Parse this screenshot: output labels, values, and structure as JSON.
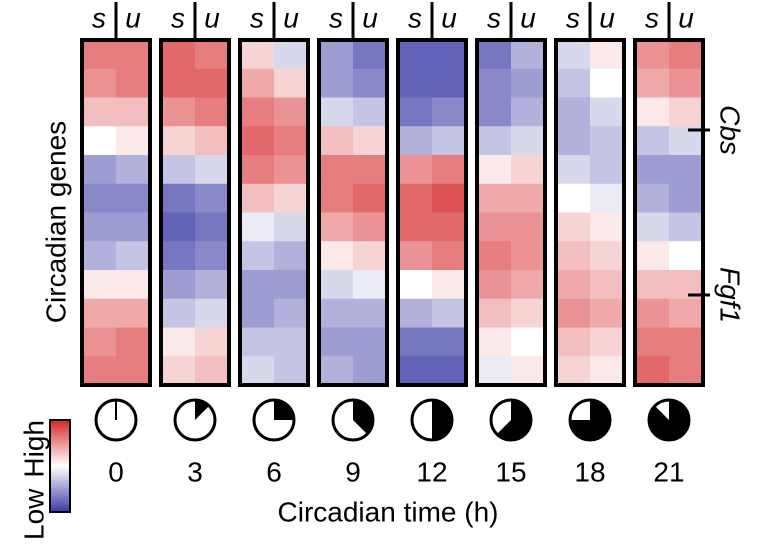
{
  "chart_data": {
    "type": "heatmap",
    "y_label": "Circadian genes",
    "x_label": "Circadian time (h)",
    "column_labels": [
      "s",
      "u"
    ],
    "times": [
      0,
      3,
      6,
      9,
      12,
      15,
      18,
      21
    ],
    "clim": [
      -1,
      1
    ],
    "colors": {
      "low": "#3b3ba6",
      "mid": "#ffffff",
      "high": "#d62728"
    },
    "legend_labels": {
      "high": "High",
      "low": "Low"
    },
    "gene_labels": [
      "Cbs",
      "Fgf1"
    ],
    "values": [
      [
        [
          0.6,
          0.5,
          0.3,
          0.0,
          -0.5,
          -0.6,
          -0.5,
          -0.4,
          0.1,
          0.4,
          0.5,
          0.6
        ],
        [
          0.6,
          0.6,
          0.3,
          0.1,
          -0.4,
          -0.6,
          -0.5,
          -0.3,
          0.1,
          0.4,
          0.6,
          0.6
        ]
      ],
      [
        [
          0.7,
          0.7,
          0.5,
          0.2,
          -0.3,
          -0.7,
          -0.8,
          -0.7,
          -0.5,
          -0.3,
          0.1,
          0.2
        ],
        [
          0.6,
          0.7,
          0.6,
          0.3,
          -0.2,
          -0.6,
          -0.7,
          -0.6,
          -0.4,
          -0.2,
          0.2,
          0.3
        ]
      ],
      [
        [
          0.2,
          0.4,
          0.6,
          0.7,
          0.6,
          0.3,
          -0.1,
          -0.3,
          -0.5,
          -0.5,
          -0.3,
          -0.2
        ],
        [
          -0.2,
          0.2,
          0.5,
          0.6,
          0.5,
          0.2,
          -0.2,
          -0.4,
          -0.5,
          -0.4,
          -0.3,
          -0.3
        ]
      ],
      [
        [
          -0.5,
          -0.5,
          -0.2,
          0.3,
          0.6,
          0.6,
          0.4,
          0.1,
          -0.2,
          -0.4,
          -0.5,
          -0.4
        ],
        [
          -0.7,
          -0.6,
          -0.3,
          0.2,
          0.6,
          0.7,
          0.5,
          0.2,
          -0.1,
          -0.4,
          -0.5,
          -0.5
        ]
      ],
      [
        [
          -0.8,
          -0.8,
          -0.7,
          -0.4,
          0.5,
          0.7,
          0.7,
          0.5,
          0.0,
          -0.4,
          -0.7,
          -0.8
        ],
        [
          -0.8,
          -0.8,
          -0.6,
          -0.3,
          0.6,
          0.8,
          0.7,
          0.6,
          0.1,
          -0.3,
          -0.7,
          -0.8
        ]
      ],
      [
        [
          -0.7,
          -0.6,
          -0.6,
          -0.3,
          0.1,
          0.4,
          0.5,
          0.6,
          0.5,
          0.3,
          0.1,
          -0.1
        ],
        [
          -0.4,
          -0.5,
          -0.4,
          -0.2,
          0.2,
          0.4,
          0.5,
          0.5,
          0.4,
          0.2,
          0.0,
          0.1
        ]
      ],
      [
        [
          -0.2,
          -0.3,
          -0.4,
          -0.4,
          -0.2,
          0.0,
          0.2,
          0.3,
          0.4,
          0.5,
          0.3,
          0.2
        ],
        [
          0.1,
          0.0,
          -0.2,
          -0.3,
          -0.3,
          -0.1,
          0.1,
          0.2,
          0.3,
          0.4,
          0.2,
          0.1
        ]
      ],
      [
        [
          0.5,
          0.4,
          0.1,
          -0.3,
          -0.5,
          -0.4,
          -0.2,
          0.1,
          0.3,
          0.5,
          0.6,
          0.7
        ],
        [
          0.6,
          0.5,
          0.2,
          -0.2,
          -0.5,
          -0.5,
          -0.3,
          0.0,
          0.3,
          0.4,
          0.6,
          0.6
        ]
      ]
    ]
  }
}
